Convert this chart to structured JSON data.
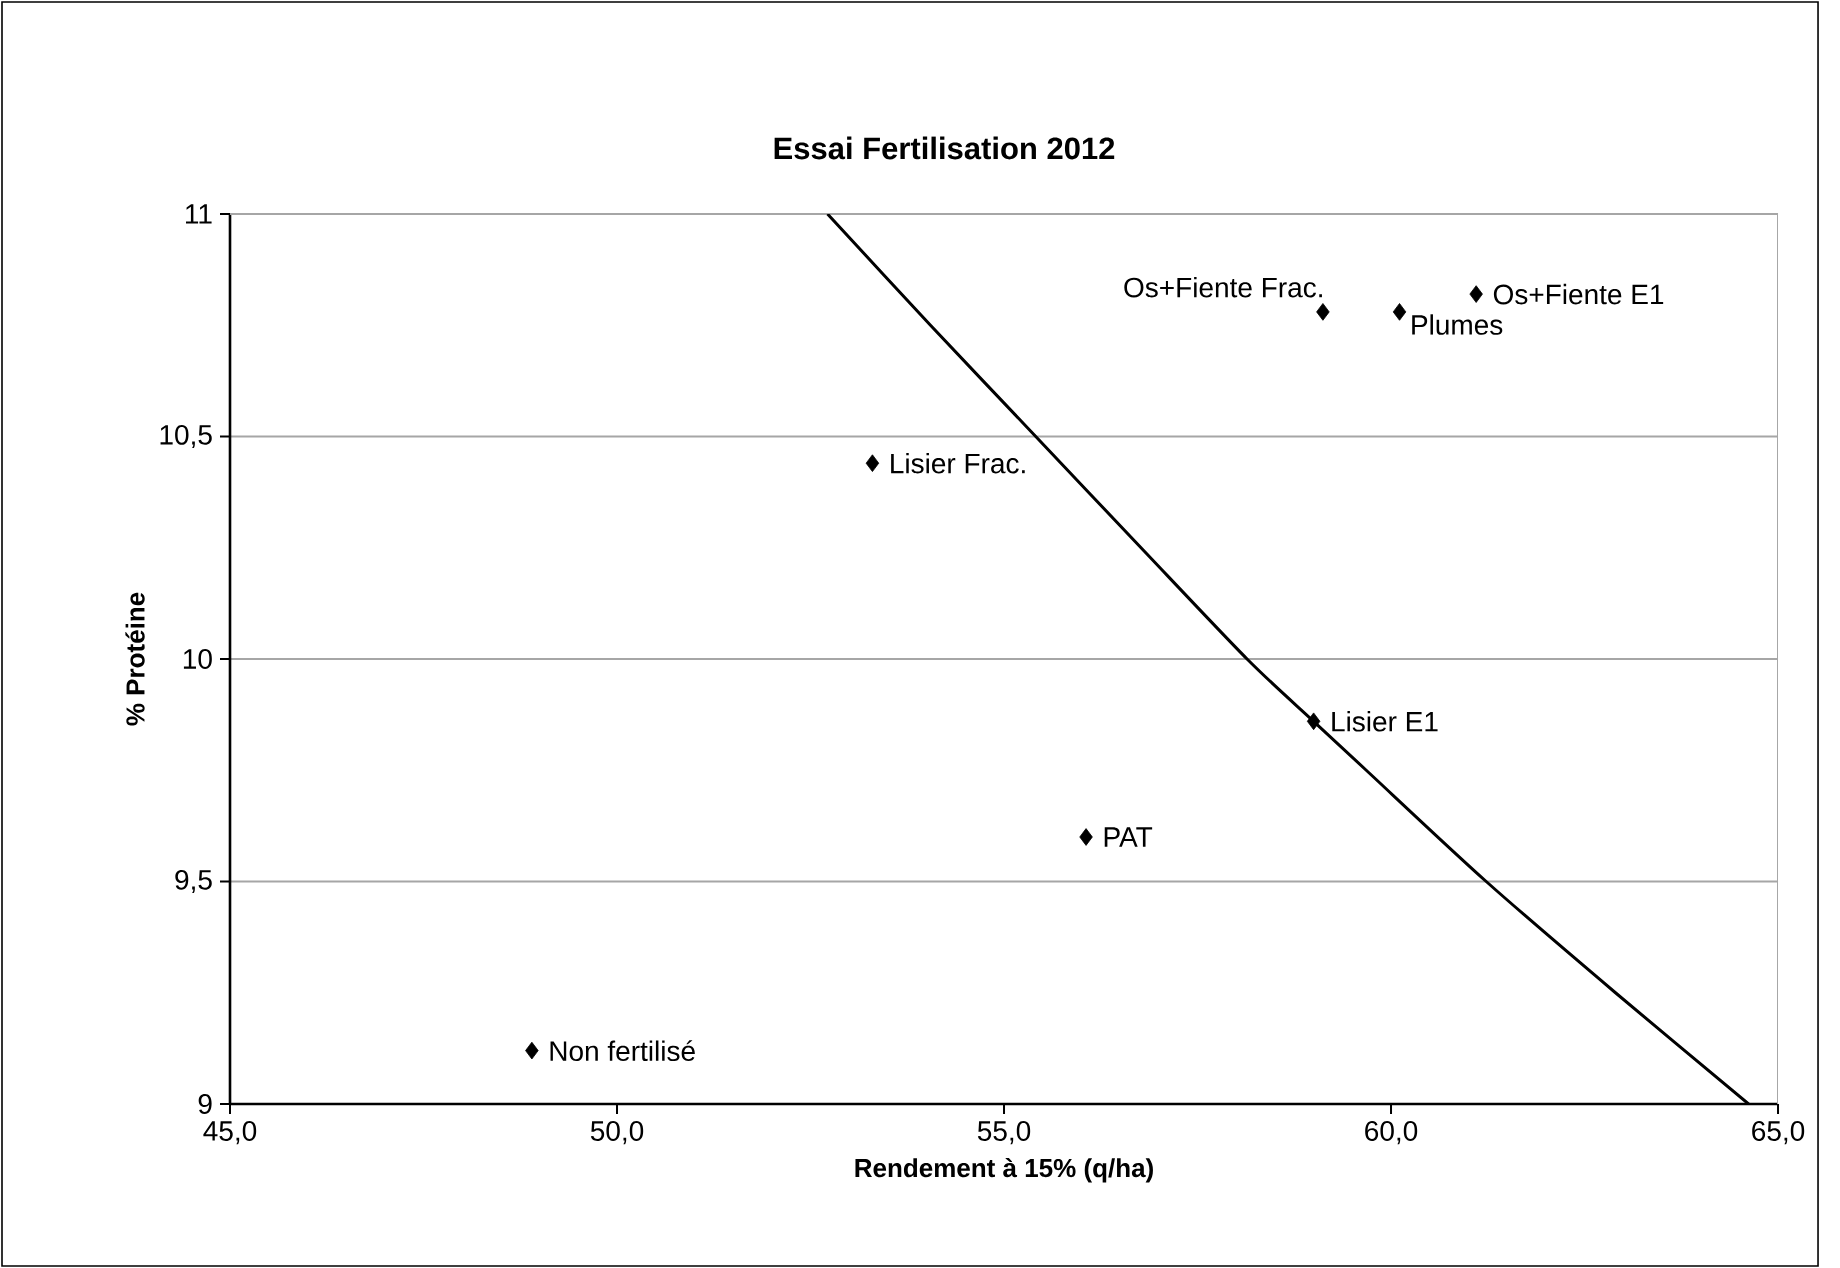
{
  "chart_data": {
    "type": "scatter",
    "title": "Essai Fertilisation 2012",
    "xlabel": "Rendement à 15% (q/ha)",
    "ylabel": "% Protéine",
    "xlim": [
      45,
      65
    ],
    "ylim": [
      9,
      11
    ],
    "xticks": [
      {
        "value": 45,
        "label": "45,0"
      },
      {
        "value": 50,
        "label": "50,0"
      },
      {
        "value": 55,
        "label": "55,0"
      },
      {
        "value": 60,
        "label": "60,0"
      },
      {
        "value": 65,
        "label": "65,0"
      }
    ],
    "yticks": [
      9,
      {
        "value": 9.5,
        "label": "9,5"
      },
      10,
      {
        "value": 10.5,
        "label": "10,5"
      },
      11
    ],
    "grid": "y",
    "marker": "diamond",
    "series": [
      {
        "type": "scatter",
        "color": "#000000",
        "x": [
          48.9,
          53.3,
          56.06,
          59.0,
          59.12,
          60.11,
          61.1
        ],
        "values": [
          9.12,
          10.44,
          9.6,
          9.86,
          10.78,
          10.78,
          10.82
        ]
      },
      {
        "type": "line",
        "color": "#000000",
        "marker": "none",
        "x": [
          52.72,
          54.05,
          55.41,
          56.77,
          58.14,
          59.0,
          59.68,
          61.23,
          62.9,
          64.62
        ],
        "values": [
          11,
          10.75,
          10.5,
          10.25,
          10,
          9.86,
          9.75,
          9.5,
          9.25,
          9
        ]
      }
    ],
    "annotations": [
      {
        "text": "Non fertilisé",
        "x": 48.9,
        "y": 9.12
      },
      {
        "text": "Lisier Frac.",
        "x": 53.3,
        "y": 10.44
      },
      {
        "text": "PAT",
        "x": 56.06,
        "y": 9.6
      },
      {
        "text": "Lisier E1",
        "x": 59.0,
        "y": 9.86
      },
      {
        "text": "Os+Fiente Frac.",
        "x": 59.12,
        "y": 10.78
      },
      {
        "text": "Plumes",
        "x": 60.11,
        "y": 10.78
      },
      {
        "text": "Os+Fiente E1",
        "x": 61.1,
        "y": 10.82
      }
    ]
  }
}
